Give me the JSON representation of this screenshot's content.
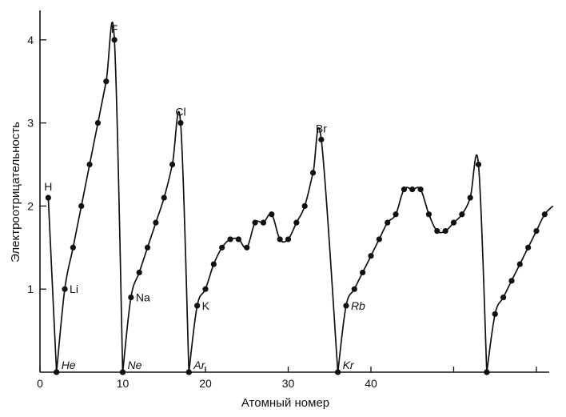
{
  "chart_data": {
    "type": "line",
    "title": "",
    "xlabel": "Атомный номер",
    "ylabel": "Электроотрицательность",
    "xlim": [
      0,
      62
    ],
    "ylim": [
      0,
      4.5
    ],
    "xticks": [
      {
        "value": 0,
        "label": "0"
      },
      {
        "value": 10,
        "label": "10"
      },
      {
        "value": 20,
        "label": "20"
      },
      {
        "value": 30,
        "label": "30"
      },
      {
        "value": 40,
        "label": "40"
      },
      {
        "value": 50,
        "label": ""
      },
      {
        "value": 60,
        "label": ""
      }
    ],
    "yticks": [
      {
        "value": 1,
        "label": "1"
      },
      {
        "value": 2,
        "label": "2"
      },
      {
        "value": 3,
        "label": "3"
      },
      {
        "value": 4,
        "label": "4"
      }
    ],
    "grid": false,
    "color": "#111111",
    "segments": [
      {
        "points": [
          [
            1,
            2.1
          ],
          [
            2,
            0
          ]
        ]
      },
      {
        "points": [
          [
            2,
            0
          ],
          [
            3,
            1.0
          ],
          [
            4,
            1.5
          ],
          [
            5,
            2.0
          ],
          [
            6,
            2.5
          ],
          [
            7,
            3.0
          ],
          [
            8,
            3.5
          ],
          [
            9,
            4.0
          ],
          [
            10,
            0
          ]
        ]
      },
      {
        "points": [
          [
            10,
            0
          ],
          [
            11,
            0.9
          ],
          [
            12,
            1.2
          ],
          [
            13,
            1.5
          ],
          [
            14,
            1.8
          ],
          [
            15,
            2.1
          ],
          [
            16,
            2.5
          ],
          [
            17,
            3.0
          ],
          [
            18,
            0
          ]
        ]
      },
      {
        "points": [
          [
            18,
            0
          ],
          [
            19,
            0.8
          ],
          [
            20,
            1.0
          ],
          [
            21,
            1.3
          ],
          [
            22,
            1.5
          ],
          [
            23,
            1.6
          ],
          [
            24,
            1.6
          ],
          [
            25,
            1.5
          ],
          [
            26,
            1.8
          ],
          [
            27,
            1.8
          ],
          [
            28,
            1.9
          ],
          [
            29,
            1.6
          ],
          [
            30,
            1.6
          ],
          [
            31,
            1.8
          ],
          [
            32,
            2.0
          ],
          [
            33,
            2.4
          ],
          [
            34,
            2.8
          ],
          [
            36,
            0
          ]
        ]
      },
      {
        "points": [
          [
            36,
            0
          ],
          [
            37,
            0.8
          ],
          [
            38,
            1.0
          ],
          [
            39,
            1.2
          ],
          [
            40,
            1.4
          ],
          [
            41,
            1.6
          ],
          [
            42,
            1.8
          ],
          [
            43,
            1.9
          ],
          [
            44,
            2.2
          ],
          [
            45,
            2.2
          ],
          [
            46,
            2.2
          ],
          [
            47,
            1.9
          ],
          [
            48,
            1.7
          ],
          [
            49,
            1.7
          ],
          [
            50,
            1.8
          ],
          [
            51,
            1.9
          ],
          [
            52,
            2.1
          ],
          [
            53,
            2.5
          ],
          [
            54,
            0
          ]
        ]
      },
      {
        "points": [
          [
            54,
            0
          ],
          [
            55,
            0.7
          ],
          [
            56,
            0.9
          ],
          [
            57,
            1.1
          ],
          [
            58,
            1.3
          ],
          [
            59,
            1.5
          ],
          [
            60,
            1.7
          ],
          [
            61,
            1.9
          ]
        ],
        "tail": [
          62,
          2.0
        ]
      }
    ],
    "annotations": [
      {
        "text": "H",
        "x": 1,
        "y": 2.1,
        "italic": false
      },
      {
        "text": "Li",
        "x": 3,
        "y": 1.0,
        "italic": false
      },
      {
        "text": "F",
        "x": 9,
        "y": 4.0,
        "italic": false
      },
      {
        "text": "Na",
        "x": 11,
        "y": 0.9,
        "italic": false
      },
      {
        "text": "Cl",
        "x": 17,
        "y": 3.0,
        "italic": false
      },
      {
        "text": "K",
        "x": 19,
        "y": 0.8,
        "italic": false
      },
      {
        "text": "Br",
        "x": 34,
        "y": 2.8,
        "italic": false
      },
      {
        "text": "Rb",
        "x": 37,
        "y": 0.8,
        "italic": true
      },
      {
        "text": "He",
        "x": 2,
        "y": 0,
        "italic": true
      },
      {
        "text": "Ne",
        "x": 10,
        "y": 0,
        "italic": true
      },
      {
        "text": "Ar",
        "x": 18,
        "y": 0,
        "italic": true
      },
      {
        "text": "Kr",
        "x": 36,
        "y": 0,
        "italic": true
      }
    ]
  }
}
